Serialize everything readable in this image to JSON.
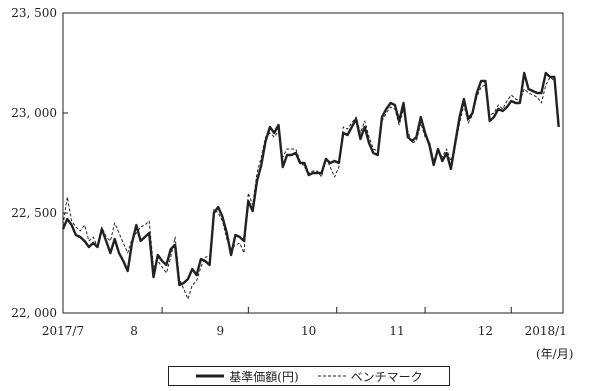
{
  "chart_data": {
    "type": "line",
    "ylim": [
      22000,
      23500
    ],
    "y_ticks": [
      "22, 000",
      "22, 500",
      "23, 000",
      "23, 500"
    ],
    "y_tick_values": [
      22000,
      22500,
      23000,
      23500
    ],
    "x_ticks": [
      "2017/7",
      "8",
      "9",
      "10",
      "11",
      "12",
      "2018/1"
    ],
    "x_unit": "(年/月)",
    "legend_position": "bottom",
    "grid": false,
    "series": [
      {
        "name": "基準価額(円)",
        "style": "solid",
        "color": "#222222",
        "values": [
          [
            0,
            22420
          ],
          [
            1,
            22470
          ],
          [
            2,
            22440
          ],
          [
            3,
            22390
          ],
          [
            4,
            22380
          ],
          [
            5,
            22360
          ],
          [
            6,
            22330
          ],
          [
            7,
            22350
          ],
          [
            8,
            22330
          ],
          [
            9,
            22420
          ],
          [
            10,
            22360
          ],
          [
            11,
            22300
          ],
          [
            12,
            22370
          ],
          [
            13,
            22300
          ],
          [
            14,
            22260
          ],
          [
            15,
            22210
          ],
          [
            16,
            22350
          ],
          [
            17,
            22440
          ],
          [
            18,
            22360
          ],
          [
            19,
            22380
          ],
          [
            20,
            22400
          ],
          [
            21,
            22180
          ],
          [
            22,
            22290
          ],
          [
            23,
            22260
          ],
          [
            24,
            22240
          ],
          [
            25,
            22320
          ],
          [
            26,
            22340
          ],
          [
            27,
            22140
          ],
          [
            28,
            22150
          ],
          [
            29,
            22170
          ],
          [
            30,
            22220
          ],
          [
            31,
            22190
          ],
          [
            32,
            22270
          ],
          [
            33,
            22260
          ],
          [
            34,
            22240
          ],
          [
            35,
            22500
          ],
          [
            36,
            22530
          ],
          [
            37,
            22480
          ],
          [
            38,
            22400
          ],
          [
            39,
            22290
          ],
          [
            40,
            22390
          ],
          [
            41,
            22380
          ],
          [
            42,
            22360
          ],
          [
            43,
            22560
          ],
          [
            44,
            22510
          ],
          [
            45,
            22660
          ],
          [
            46,
            22740
          ],
          [
            47,
            22860
          ],
          [
            48,
            22930
          ],
          [
            49,
            22900
          ],
          [
            50,
            22940
          ],
          [
            51,
            22730
          ],
          [
            52,
            22790
          ],
          [
            53,
            22790
          ],
          [
            54,
            22800
          ],
          [
            55,
            22750
          ],
          [
            56,
            22750
          ],
          [
            57,
            22690
          ],
          [
            58,
            22700
          ],
          [
            59,
            22700
          ],
          [
            60,
            22700
          ],
          [
            61,
            22770
          ],
          [
            62,
            22750
          ],
          [
            63,
            22760
          ],
          [
            64,
            22750
          ],
          [
            65,
            22900
          ],
          [
            66,
            22890
          ],
          [
            67,
            22930
          ],
          [
            68,
            22970
          ],
          [
            69,
            22870
          ],
          [
            70,
            22930
          ],
          [
            71,
            22850
          ],
          [
            72,
            22800
          ],
          [
            73,
            22790
          ],
          [
            74,
            22980
          ],
          [
            75,
            23020
          ],
          [
            76,
            23050
          ],
          [
            77,
            23040
          ],
          [
            78,
            22960
          ],
          [
            79,
            23050
          ],
          [
            80,
            22880
          ],
          [
            81,
            22860
          ],
          [
            82,
            22880
          ],
          [
            83,
            22980
          ],
          [
            84,
            22900
          ],
          [
            85,
            22840
          ],
          [
            86,
            22740
          ],
          [
            87,
            22820
          ],
          [
            88,
            22760
          ],
          [
            89,
            22800
          ],
          [
            90,
            22720
          ],
          [
            91,
            22850
          ],
          [
            92,
            22980
          ],
          [
            93,
            23070
          ],
          [
            94,
            22970
          ],
          [
            95,
            23000
          ],
          [
            96,
            23100
          ],
          [
            97,
            23160
          ],
          [
            98,
            23160
          ],
          [
            99,
            22960
          ],
          [
            100,
            22980
          ],
          [
            101,
            23020
          ],
          [
            102,
            23010
          ],
          [
            103,
            23030
          ],
          [
            104,
            23060
          ],
          [
            105,
            23050
          ],
          [
            106,
            23050
          ],
          [
            107,
            23200
          ],
          [
            108,
            23120
          ],
          [
            109,
            23110
          ],
          [
            110,
            23100
          ],
          [
            111,
            23100
          ],
          [
            112,
            23200
          ],
          [
            113,
            23180
          ],
          [
            114,
            23180
          ],
          [
            115,
            22930
          ]
        ]
      },
      {
        "name": "ベンチマーク",
        "style": "dashed",
        "color": "#222222",
        "values": [
          [
            0,
            22440
          ],
          [
            1,
            22580
          ],
          [
            2,
            22460
          ],
          [
            3,
            22430
          ],
          [
            4,
            22410
          ],
          [
            5,
            22440
          ],
          [
            6,
            22360
          ],
          [
            7,
            22380
          ],
          [
            8,
            22330
          ],
          [
            9,
            22430
          ],
          [
            10,
            22380
          ],
          [
            11,
            22360
          ],
          [
            12,
            22450
          ],
          [
            13,
            22400
          ],
          [
            14,
            22350
          ],
          [
            15,
            22300
          ],
          [
            16,
            22370
          ],
          [
            17,
            22400
          ],
          [
            18,
            22430
          ],
          [
            19,
            22440
          ],
          [
            20,
            22460
          ],
          [
            21,
            22230
          ],
          [
            22,
            22260
          ],
          [
            23,
            22230
          ],
          [
            24,
            22200
          ],
          [
            25,
            22280
          ],
          [
            26,
            22380
          ],
          [
            27,
            22170
          ],
          [
            28,
            22120
          ],
          [
            29,
            22070
          ],
          [
            30,
            22140
          ],
          [
            31,
            22160
          ],
          [
            32,
            22230
          ],
          [
            33,
            22280
          ],
          [
            34,
            22280
          ],
          [
            35,
            22520
          ],
          [
            36,
            22500
          ],
          [
            37,
            22460
          ],
          [
            38,
            22370
          ],
          [
            39,
            22320
          ],
          [
            40,
            22340
          ],
          [
            41,
            22350
          ],
          [
            42,
            22300
          ],
          [
            43,
            22600
          ],
          [
            44,
            22540
          ],
          [
            45,
            22700
          ],
          [
            46,
            22780
          ],
          [
            47,
            22880
          ],
          [
            48,
            22900
          ],
          [
            49,
            22880
          ],
          [
            50,
            22910
          ],
          [
            51,
            22780
          ],
          [
            52,
            22820
          ],
          [
            53,
            22820
          ],
          [
            54,
            22820
          ],
          [
            55,
            22760
          ],
          [
            56,
            22730
          ],
          [
            57,
            22700
          ],
          [
            58,
            22710
          ],
          [
            59,
            22710
          ],
          [
            60,
            22680
          ],
          [
            61,
            22780
          ],
          [
            62,
            22730
          ],
          [
            63,
            22680
          ],
          [
            64,
            22730
          ],
          [
            65,
            22930
          ],
          [
            66,
            22920
          ],
          [
            67,
            22950
          ],
          [
            68,
            22980
          ],
          [
            69,
            22900
          ],
          [
            70,
            22960
          ],
          [
            71,
            22880
          ],
          [
            72,
            22820
          ],
          [
            73,
            22810
          ],
          [
            74,
            22960
          ],
          [
            75,
            23000
          ],
          [
            76,
            23030
          ],
          [
            77,
            23020
          ],
          [
            78,
            22940
          ],
          [
            79,
            23020
          ],
          [
            80,
            22910
          ],
          [
            81,
            22850
          ],
          [
            82,
            22860
          ],
          [
            83,
            22950
          ],
          [
            84,
            22880
          ],
          [
            85,
            22860
          ],
          [
            86,
            22760
          ],
          [
            87,
            22810
          ],
          [
            88,
            22780
          ],
          [
            89,
            22820
          ],
          [
            90,
            22760
          ],
          [
            91,
            22830
          ],
          [
            92,
            22950
          ],
          [
            93,
            23040
          ],
          [
            94,
            22950
          ],
          [
            95,
            22990
          ],
          [
            96,
            23080
          ],
          [
            97,
            23130
          ],
          [
            98,
            23140
          ],
          [
            99,
            22990
          ],
          [
            100,
            23000
          ],
          [
            101,
            23040
          ],
          [
            102,
            23020
          ],
          [
            103,
            23060
          ],
          [
            104,
            23090
          ],
          [
            105,
            23070
          ],
          [
            106,
            23060
          ],
          [
            107,
            23120
          ],
          [
            108,
            23100
          ],
          [
            109,
            23090
          ],
          [
            110,
            23080
          ],
          [
            111,
            23050
          ],
          [
            112,
            23140
          ],
          [
            113,
            23180
          ],
          [
            114,
            23160
          ],
          [
            115,
            22960
          ]
        ]
      }
    ]
  }
}
